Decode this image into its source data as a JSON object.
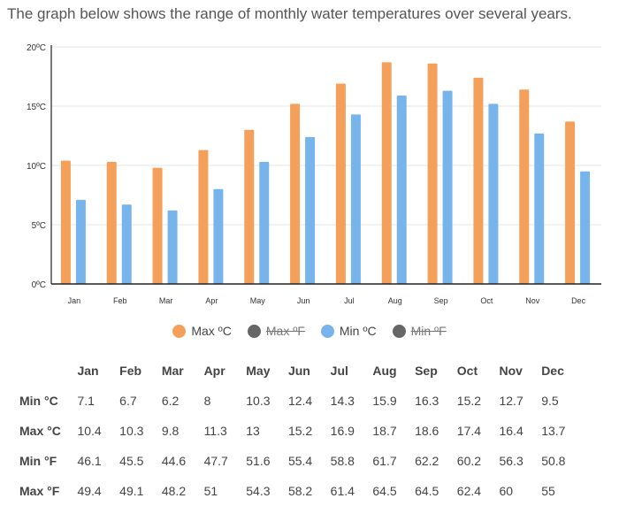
{
  "intro": "The graph below shows the range of monthly water temperatures over several years.",
  "chart_data": {
    "type": "bar",
    "categories": [
      "Jan",
      "Feb",
      "Mar",
      "Apr",
      "May",
      "Jun",
      "Jul",
      "Aug",
      "Sep",
      "Oct",
      "Nov",
      "Dec"
    ],
    "series": [
      {
        "name": "Max ºC",
        "values": [
          10.4,
          10.3,
          9.8,
          11.3,
          13,
          15.2,
          16.9,
          18.7,
          18.6,
          17.4,
          16.4,
          13.7
        ],
        "color": "#F5A05A"
      },
      {
        "name": "Min ºC",
        "values": [
          7.1,
          6.7,
          6.2,
          8,
          10.3,
          12.4,
          14.3,
          15.9,
          16.3,
          15.2,
          12.7,
          9.5
        ],
        "color": "#78B4EC"
      }
    ],
    "ylim": [
      0,
      20
    ],
    "yticks": [
      0,
      5,
      10,
      15,
      20
    ],
    "ytick_labels": [
      "0ºC",
      "5ºC",
      "10ºC",
      "15ºC",
      "20ºC"
    ],
    "grid": true,
    "legend_position": "bottom"
  },
  "legend": [
    {
      "label": "Max ºC",
      "color": "#F5A05A",
      "hidden": false
    },
    {
      "label": "Max ºF",
      "color": "#666666",
      "hidden": true
    },
    {
      "label": "Min ºC",
      "color": "#78B4EC",
      "hidden": false
    },
    {
      "label": "Min ºF",
      "color": "#666666",
      "hidden": true
    }
  ],
  "table": {
    "columns": [
      "Jan",
      "Feb",
      "Mar",
      "Apr",
      "May",
      "Jun",
      "Jul",
      "Aug",
      "Sep",
      "Oct",
      "Nov",
      "Dec"
    ],
    "rows": [
      {
        "label": "Min °C",
        "values": [
          "7.1",
          "6.7",
          "6.2",
          "8",
          "10.3",
          "12.4",
          "14.3",
          "15.9",
          "16.3",
          "15.2",
          "12.7",
          "9.5"
        ]
      },
      {
        "label": "Max °C",
        "values": [
          "10.4",
          "10.3",
          "9.8",
          "11.3",
          "13",
          "15.2",
          "16.9",
          "18.7",
          "18.6",
          "17.4",
          "16.4",
          "13.7"
        ]
      },
      {
        "label": "Min °F",
        "values": [
          "46.1",
          "45.5",
          "44.6",
          "47.7",
          "51.6",
          "55.4",
          "58.8",
          "61.7",
          "62.2",
          "60.2",
          "56.3",
          "50.8"
        ]
      },
      {
        "label": "Max °F",
        "values": [
          "49.4",
          "49.1",
          "48.2",
          "51",
          "54.3",
          "58.2",
          "61.4",
          "64.5",
          "64.5",
          "62.4",
          "60",
          "55"
        ]
      }
    ]
  }
}
